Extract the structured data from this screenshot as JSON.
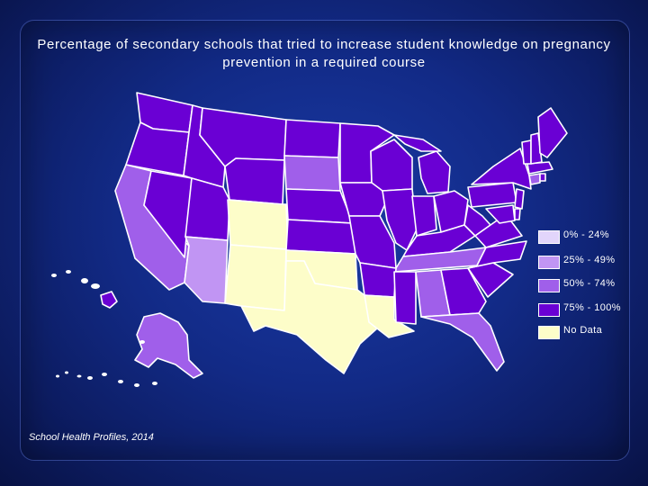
{
  "title": "Percentage of secondary schools that tried to increase student knowledge on pregnancy prevention in a required course",
  "source": "School Health Profiles, 2014",
  "colors": {
    "c0": "#e2d5fb",
    "c25": "#c195f3",
    "c50": "#a05fea",
    "c75": "#6a00d4",
    "nodata": "#fdfdc9"
  },
  "legend": [
    {
      "label": "0% - 24%",
      "color_key": "c0"
    },
    {
      "label": "25% - 49%",
      "color_key": "c25"
    },
    {
      "label": "50% - 74%",
      "color_key": "c50"
    },
    {
      "label": "75% - 100%",
      "color_key": "c75"
    },
    {
      "label": "No Data",
      "color_key": "nodata"
    }
  ]
}
